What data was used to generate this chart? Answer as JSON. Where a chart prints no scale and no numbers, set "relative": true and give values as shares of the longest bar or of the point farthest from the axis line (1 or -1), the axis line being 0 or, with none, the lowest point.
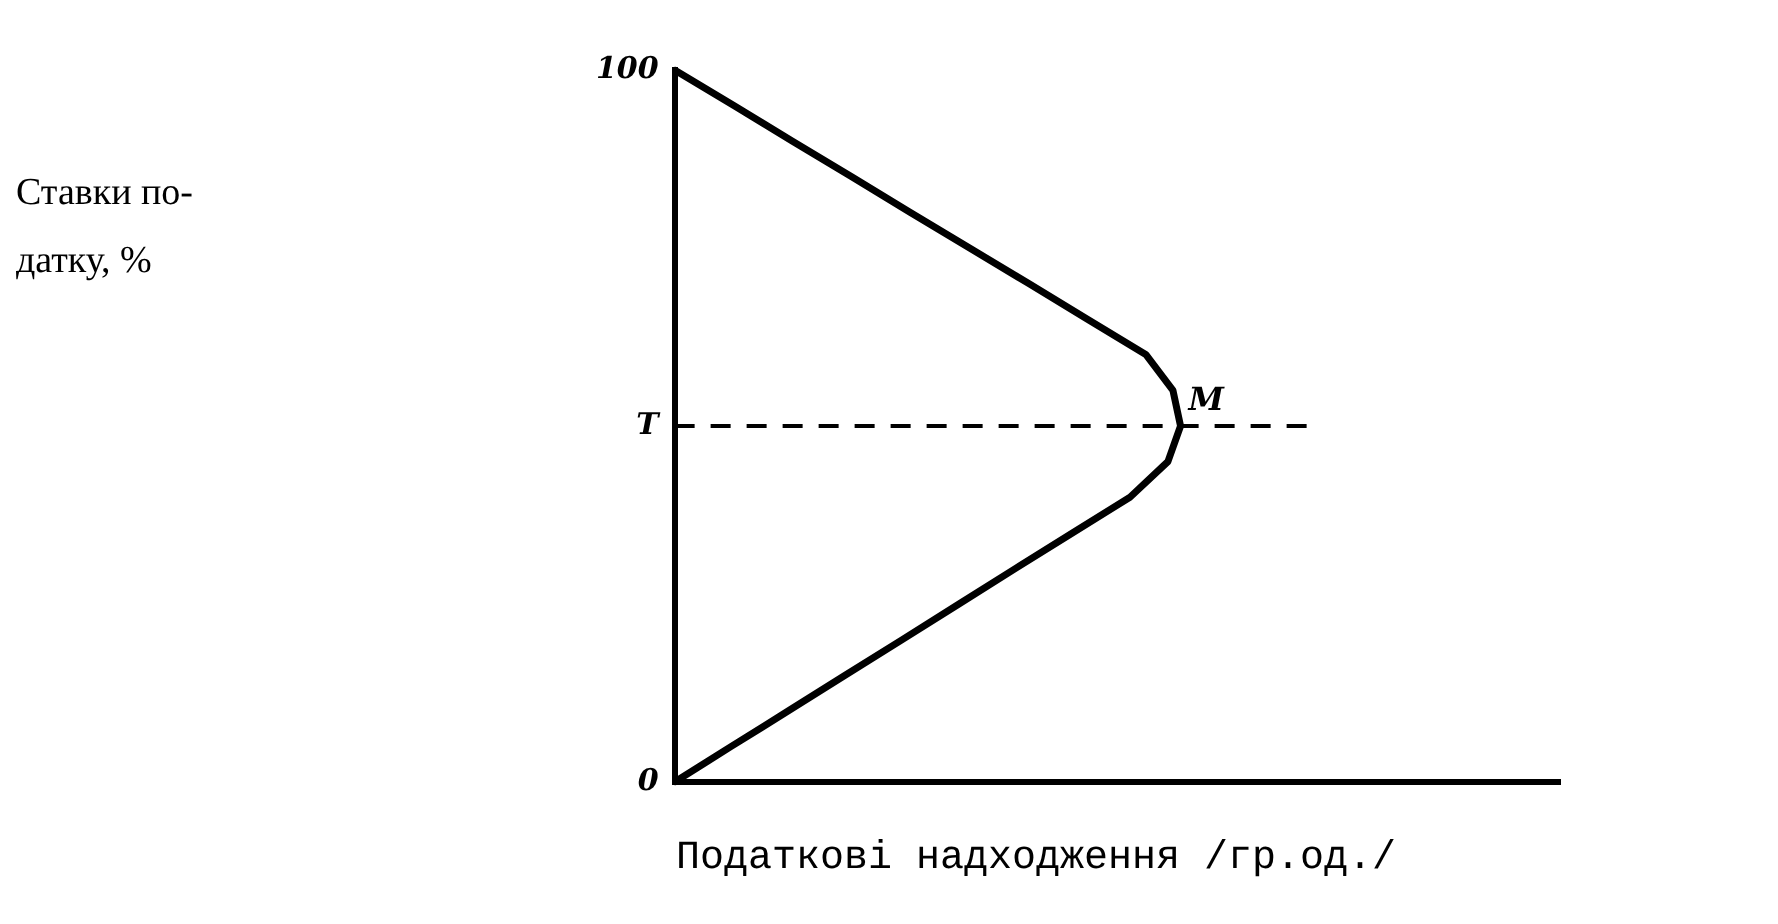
{
  "chart_data": {
    "type": "line",
    "orientation": "horizontal",
    "relative": true,
    "xlabel": "Податкові надходження /гр.од./",
    "categories": [
      "100",
      null,
      null,
      null,
      null,
      null,
      null,
      null,
      null,
      null,
      "T",
      null,
      null,
      null,
      null,
      null,
      null,
      null,
      null,
      null,
      "0"
    ],
    "series": [
      {
        "color": "#000000",
        "values": [
          0,
          0.117,
          0.233,
          0.35,
          0.466,
          0.583,
          0.7,
          0.816,
          0.932,
          0.985,
          1,
          0.975,
          0.9,
          0.787,
          0.674,
          0.562,
          0.45,
          0.337,
          0.225,
          0.112,
          0
        ]
      }
    ],
    "grid": false,
    "legend": false,
    "marker": "none",
    "line_style": "solid",
    "ref_lines": [
      {
        "axis": "y",
        "value": "T",
        "line_style": "dashed",
        "color": "#000000"
      }
    ],
    "annotations": [
      "Ставки по-датку, %",
      {
        "text": "M",
        "x": 1,
        "y": "T"
      }
    ]
  }
}
